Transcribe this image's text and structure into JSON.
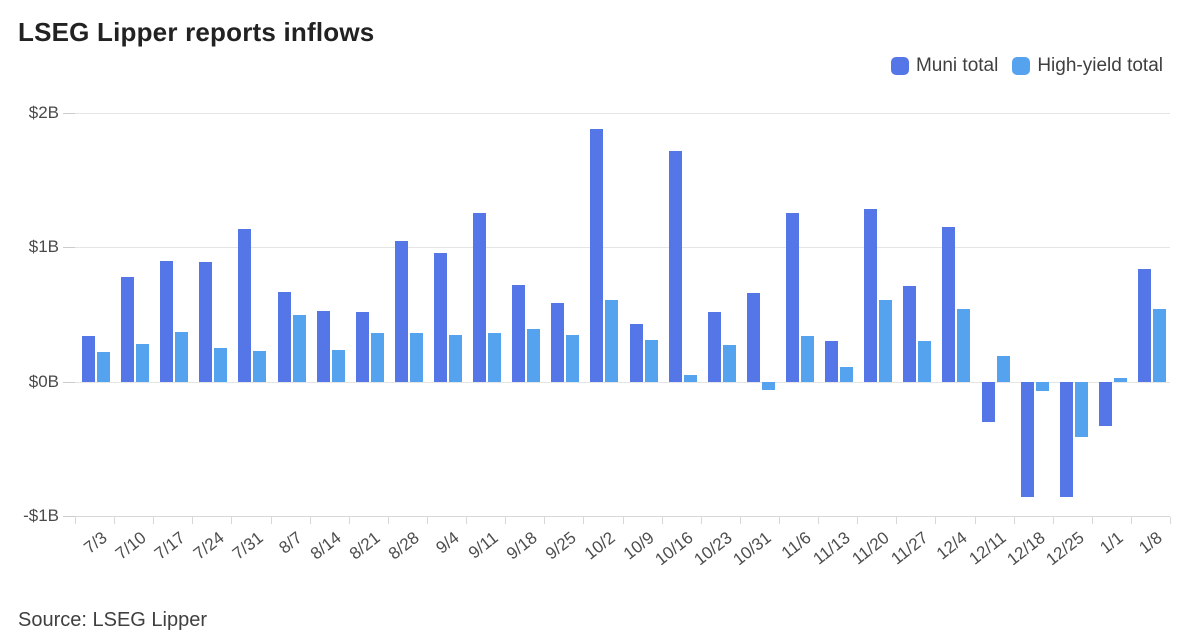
{
  "header": {
    "title": "LSEG Lipper reports inflows"
  },
  "legend": {
    "items": [
      {
        "label": "Muni total",
        "color": "#5576e7"
      },
      {
        "label": "High-yield total",
        "color": "#55a3ee"
      }
    ]
  },
  "chart_data": {
    "type": "bar",
    "title": "LSEG Lipper reports inflows",
    "categories": [
      "7/3",
      "7/10",
      "7/17",
      "7/24",
      "7/31",
      "8/7",
      "8/14",
      "8/21",
      "8/28",
      "9/4",
      "9/11",
      "9/18",
      "9/25",
      "10/2",
      "10/9",
      "10/16",
      "10/23",
      "10/31",
      "11/6",
      "11/13",
      "11/20",
      "11/27",
      "12/4",
      "12/11",
      "12/18",
      "12/25",
      "1/1",
      "1/8"
    ],
    "series": [
      {
        "name": "Muni total",
        "color": "#5576e7",
        "values": [
          0.34,
          0.78,
          0.9,
          0.89,
          1.14,
          0.67,
          0.53,
          0.52,
          1.05,
          0.96,
          1.26,
          0.72,
          0.59,
          1.88,
          0.43,
          1.72,
          0.52,
          0.66,
          1.26,
          0.3,
          1.29,
          0.71,
          1.15,
          -0.3,
          -0.86,
          -0.86,
          -0.33,
          0.84
        ]
      },
      {
        "name": "High-yield total",
        "color": "#55a3ee",
        "values": [
          0.22,
          0.28,
          0.37,
          0.25,
          0.23,
          0.5,
          0.24,
          0.36,
          0.36,
          0.35,
          0.36,
          0.39,
          0.35,
          0.61,
          0.31,
          0.05,
          0.27,
          -0.06,
          0.34,
          0.11,
          0.61,
          0.3,
          0.54,
          0.19,
          -0.07,
          -0.41,
          0.03,
          0.54
        ]
      }
    ],
    "unit": "billions USD",
    "ylim": [
      -1,
      2
    ],
    "yticks": [
      {
        "value": 2,
        "label": "$2B"
      },
      {
        "value": 1,
        "label": "$1B"
      },
      {
        "value": 0,
        "label": "$0B"
      },
      {
        "value": -1,
        "label": "-$1B"
      }
    ],
    "grid": true,
    "legend_position": "top-right",
    "xlabel": "",
    "ylabel": ""
  },
  "footer": {
    "source": "Source: LSEG Lipper"
  }
}
